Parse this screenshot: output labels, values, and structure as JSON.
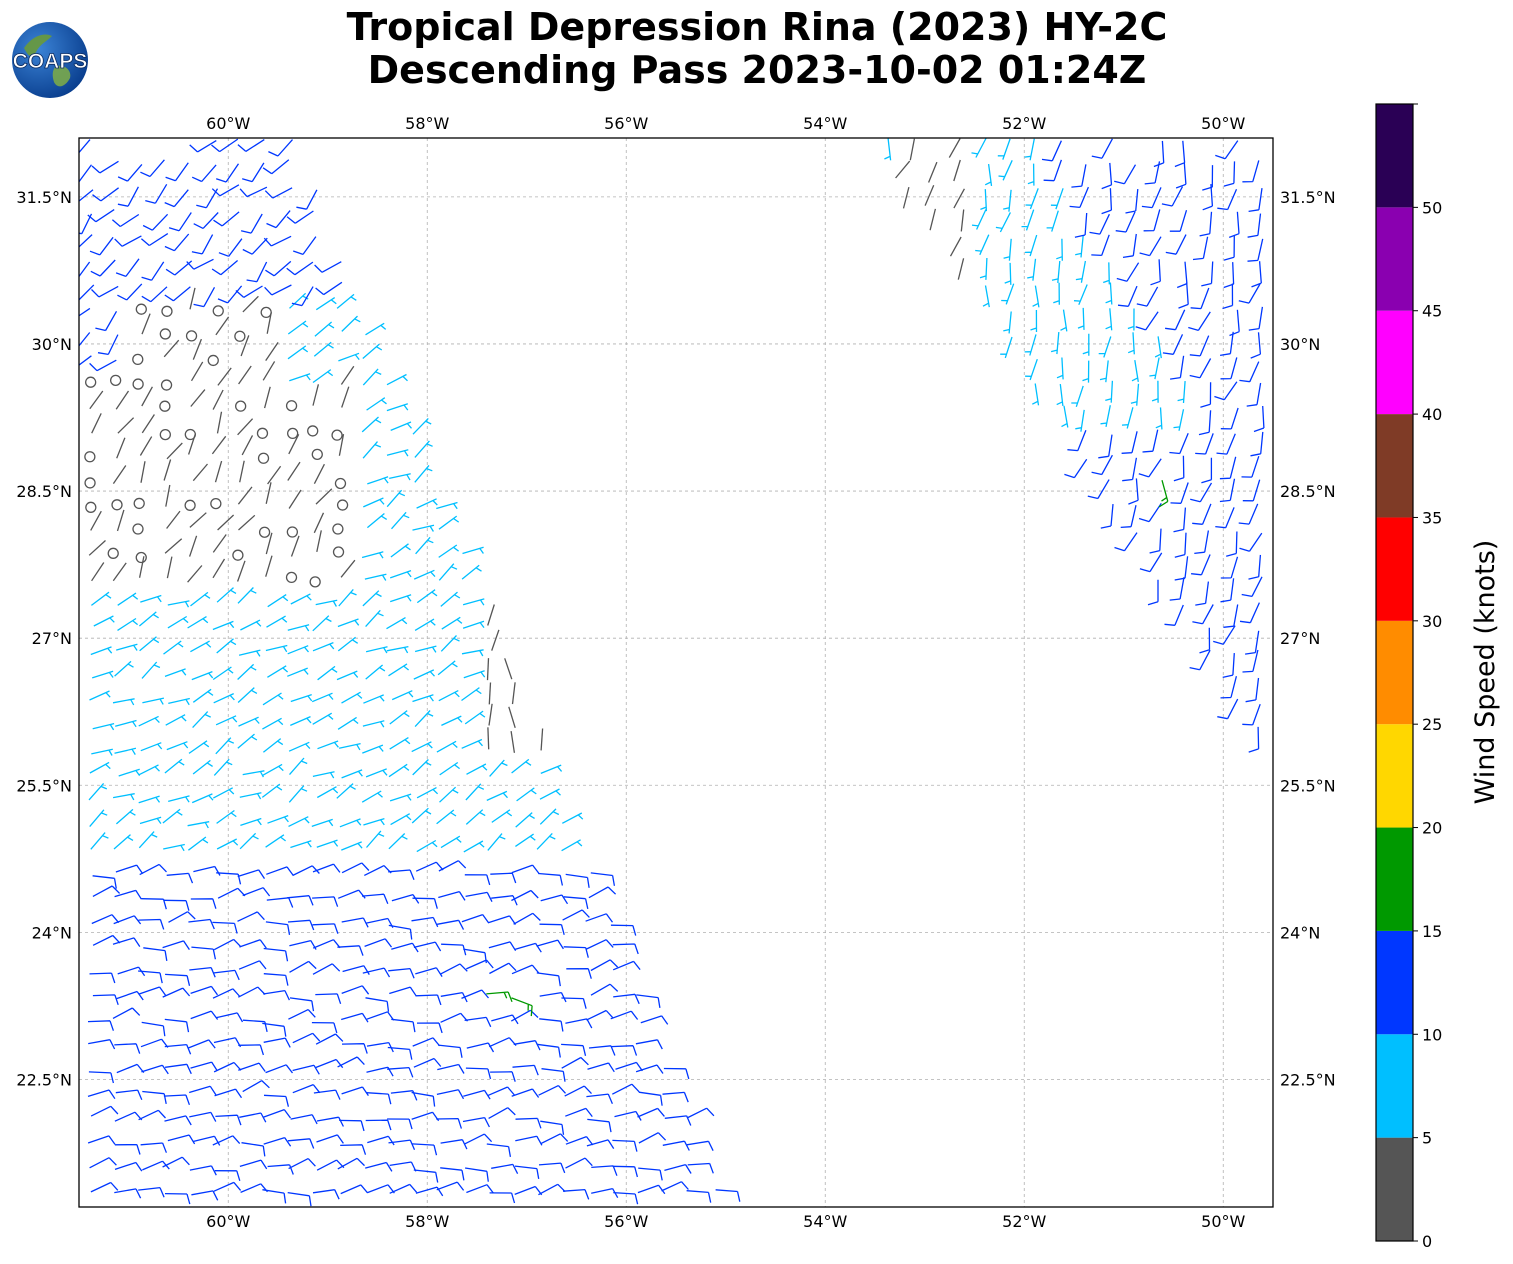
{
  "header": {
    "title_line1": "Tropical Depression Rina (2023) HY-2C",
    "title_line2": "Descending Pass 2023-10-02 01:24Z",
    "logo_text": "COAPS"
  },
  "colors": {
    "bin_0_5": "#555555",
    "bin_5_10": "#00bfff",
    "bin_10_15": "#0037ff",
    "bin_15_20": "#009900",
    "bin_20_25": "#ffd700",
    "bin_25_30": "#ff8c00",
    "bin_30_35": "#ff0000",
    "bin_35_40": "#7f3b26",
    "bin_40_45": "#ff00ff",
    "bin_45_50": "#8a00b0",
    "bin_50_plus": "#2a0055"
  },
  "chart_data": {
    "type": "wind barb map",
    "x_range_deg_lon": [
      -61.5,
      -49.5
    ],
    "y_range_deg_lat": [
      21.2,
      32.1
    ],
    "grid": true,
    "x_ticks": [
      -60,
      -58,
      -56,
      -54,
      -52,
      -50
    ],
    "x_tick_labels": [
      "60°W",
      "58°W",
      "56°W",
      "54°W",
      "52°W",
      "50°W"
    ],
    "y_ticks": [
      22.5,
      24,
      25.5,
      27,
      28.5,
      30,
      31.5
    ],
    "y_tick_labels": [
      "22.5°N",
      "24°N",
      "25.5°N",
      "27°N",
      "28.5°N",
      "30°N",
      "31.5°N"
    ],
    "colorbar": {
      "label": "Wind Speed (knots)",
      "bounds": [
        0,
        5,
        10,
        15,
        20,
        25,
        30,
        35,
        40,
        45,
        50,
        55
      ],
      "tick_labels": [
        "0",
        "5",
        "10",
        "15",
        "20",
        "25",
        "30",
        "35",
        "40",
        "45",
        "50"
      ]
    },
    "swaths": [
      {
        "pass": "western swath",
        "corners_lon_lat": [
          [
            -61.5,
            32.1
          ],
          [
            -59.3,
            32.1
          ],
          [
            -55.0,
            21.2
          ],
          [
            -61.5,
            21.2
          ]
        ],
        "regions": [
          {
            "area": "northern edge",
            "lat_range": [
              30.5,
              32.1
            ],
            "speed_kt": "10-15",
            "direction_deg": 225
          },
          {
            "area": "center near 61W-59W 27.5N-30N",
            "lat_range": [
              27.5,
              30.3
            ],
            "speed_kt": "0-5",
            "calm_circles": true,
            "direction_deg": 30
          },
          {
            "area": "eastern edge near 57W 26N-27N",
            "lat_range": [
              25.8,
              27.3
            ],
            "speed_kt": "0-5",
            "direction_deg": 0
          },
          {
            "area": "band 25N-27N",
            "lat_range": [
              25.0,
              27.0
            ],
            "speed_kt": "5-10",
            "direction_deg": 60
          },
          {
            "area": "southern part 21N-24.5N",
            "lat_range": [
              21.2,
              24.7
            ],
            "speed_kt": "10-15",
            "direction_deg": 80
          },
          {
            "area": "isolated near 57.2W 23.3N",
            "lat_range": [
              23.1,
              23.6
            ],
            "speed_kt": "15-20",
            "direction_deg": 100
          }
        ]
      },
      {
        "pass": "eastern swath",
        "corners_lon_lat": [
          [
            -53.5,
            32.1
          ],
          [
            -49.5,
            32.1
          ],
          [
            -49.5,
            25.7
          ]
        ],
        "regions": [
          {
            "area": "northwest part",
            "lat_range": [
              29.5,
              32.1
            ],
            "speed_kt": "5-10",
            "direction_deg": 190
          },
          {
            "area": "northwest edge near 53W 31.5N",
            "lat_range": [
              30.8,
              31.8
            ],
            "speed_kt": "0-5",
            "direction_deg": 200
          },
          {
            "area": "main body",
            "lat_range": [
              25.7,
              32.1
            ],
            "speed_kt": "10-15",
            "direction_deg": 195
          },
          {
            "area": "isolated near 50.7W 28.5N",
            "lat_range": [
              28.4,
              28.7
            ],
            "speed_kt": "15-20",
            "direction_deg": 180
          }
        ]
      }
    ]
  }
}
